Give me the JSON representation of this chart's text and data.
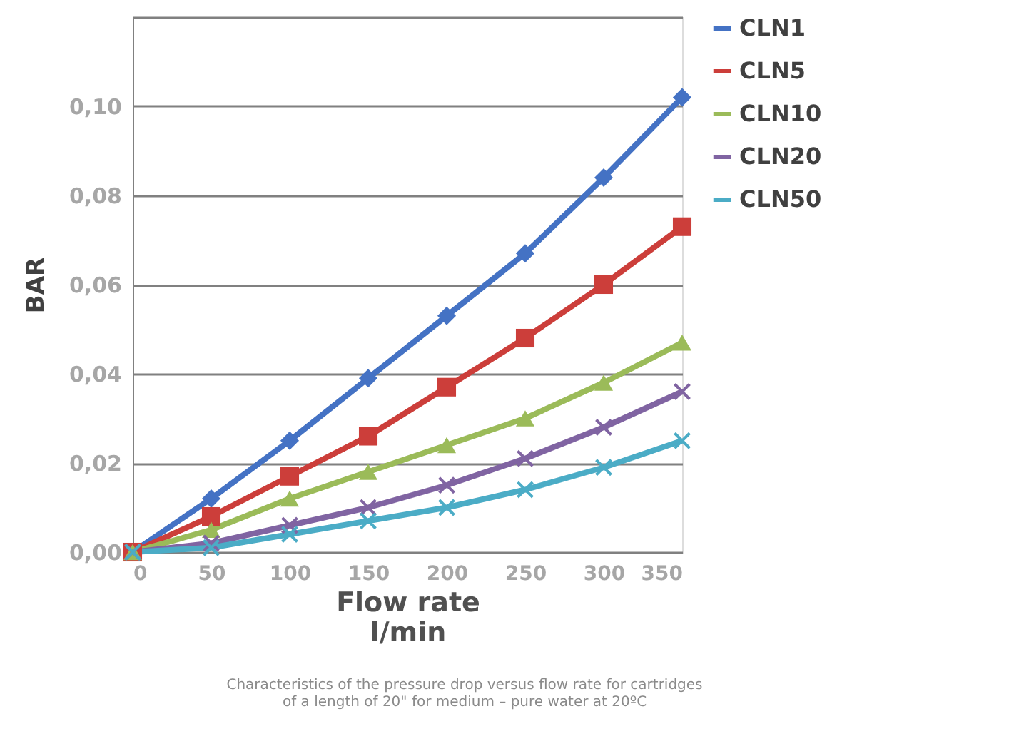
{
  "chart_data": {
    "type": "line",
    "ylabel": "BAR",
    "xlabel": "Flow rate\nl/min",
    "x": [
      0,
      50,
      100,
      150,
      200,
      250,
      300,
      350
    ],
    "series": [
      {
        "name": "CLN1",
        "color": "#4472c4",
        "marker": "diamond",
        "values": [
          0,
          0.012,
          0.025,
          0.039,
          0.053,
          0.067,
          0.084,
          0.102
        ]
      },
      {
        "name": "CLN5",
        "color": "#cc3e3a",
        "marker": "square",
        "values": [
          0,
          0.008,
          0.017,
          0.026,
          0.037,
          0.048,
          0.06,
          0.073
        ]
      },
      {
        "name": "CLN10",
        "color": "#9bbb59",
        "marker": "triangle",
        "values": [
          0,
          0.005,
          0.012,
          0.018,
          0.024,
          0.03,
          0.038,
          0.047
        ]
      },
      {
        "name": "CLN20",
        "color": "#8064a2",
        "marker": "cross",
        "values": [
          0,
          0.002,
          0.006,
          0.01,
          0.015,
          0.021,
          0.028,
          0.036
        ]
      },
      {
        "name": "CLN50",
        "color": "#4bacc6",
        "marker": "cross",
        "values": [
          0,
          0.001,
          0.004,
          0.007,
          0.01,
          0.014,
          0.019,
          0.025
        ]
      }
    ],
    "xlim": [
      0,
      350
    ],
    "xticks": [
      0,
      50,
      100,
      150,
      200,
      250,
      300,
      350
    ],
    "ylim": [
      0,
      0.12
    ],
    "yticks": [
      {
        "value": 0,
        "label": "0,00"
      },
      {
        "value": 0.02,
        "label": "0,02"
      },
      {
        "value": 0.04,
        "label": "0,04"
      },
      {
        "value": 0.06,
        "label": "0,06"
      },
      {
        "value": 0.08,
        "label": "0,08"
      },
      {
        "value": 0.1,
        "label": "0,10"
      },
      {
        "value": 0.12,
        "label": null
      }
    ],
    "grid": "y",
    "legend": "right",
    "line_style": "solid",
    "annotations": [
      "Characteristics of the pressure drop versus flow rate for cartridges of a length of 20\" for medium – pure water at 20ºC"
    ]
  }
}
